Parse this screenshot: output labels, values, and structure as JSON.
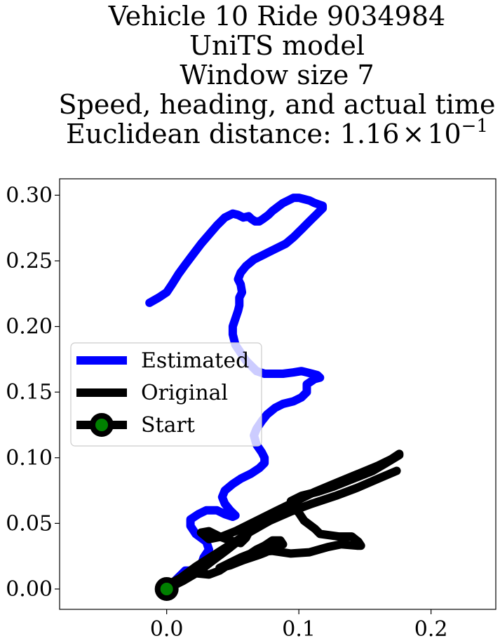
{
  "chart_data": {
    "type": "line",
    "title_lines": [
      "Vehicle 10 Ride 9034984",
      "UniTS model",
      "Window size 7",
      "Speed, heading, and actual time"
    ],
    "title_metric": {
      "prefix": "Euclidean distance: ",
      "mantissa": "1.16",
      "times": "×",
      "base": "10",
      "exponent": "−1"
    },
    "xlabel": "",
    "ylabel": "",
    "xlim": [
      -0.081,
      0.249
    ],
    "ylim": [
      -0.0155,
      0.3125
    ],
    "x_ticks": [
      0.0,
      0.1,
      0.2
    ],
    "x_tick_labels": [
      "0.0",
      "0.1",
      "0.2"
    ],
    "y_ticks": [
      0.0,
      0.05,
      0.1,
      0.15,
      0.2,
      0.25,
      0.3
    ],
    "y_tick_labels": [
      "0.00",
      "0.05",
      "0.10",
      "0.15",
      "0.20",
      "0.25",
      "0.30"
    ],
    "grid": false,
    "legend_position": "center-left",
    "series": [
      {
        "name": "Estimated",
        "color": "#0000ff",
        "x": [
          -0.013,
          -0.006,
          0.0,
          0.004,
          0.009,
          0.014,
          0.02,
          0.026,
          0.032,
          0.038,
          0.044,
          0.05,
          0.054,
          0.058,
          0.062,
          0.064,
          0.067,
          0.07,
          0.073,
          0.077,
          0.08,
          0.084,
          0.088,
          0.092,
          0.096,
          0.1,
          0.104,
          0.108,
          0.112,
          0.115,
          0.118,
          0.118,
          0.114,
          0.108,
          0.102,
          0.096,
          0.09,
          0.082,
          0.074,
          0.066,
          0.06,
          0.056,
          0.054,
          0.056,
          0.057,
          0.055,
          0.055,
          0.054,
          0.052,
          0.05,
          0.05,
          0.052,
          0.056,
          0.06,
          0.064,
          0.068,
          0.074,
          0.08,
          0.088,
          0.096,
          0.102,
          0.106,
          0.11,
          0.114,
          0.116,
          0.112,
          0.106,
          0.106,
          0.102,
          0.096,
          0.088,
          0.082,
          0.076,
          0.072,
          0.068,
          0.066,
          0.068,
          0.072,
          0.074,
          0.074,
          0.07,
          0.064,
          0.056,
          0.05,
          0.044,
          0.042,
          0.044,
          0.048,
          0.052,
          0.05,
          0.044,
          0.038,
          0.03,
          0.024,
          0.018,
          0.018,
          0.022,
          0.03,
          0.032,
          0.028,
          0.026,
          0.02,
          0.014,
          0.01,
          0.006,
          0.003,
          0.0
        ],
        "y": [
          0.218,
          0.222,
          0.226,
          0.232,
          0.24,
          0.247,
          0.255,
          0.263,
          0.27,
          0.277,
          0.283,
          0.286,
          0.285,
          0.283,
          0.284,
          0.282,
          0.28,
          0.28,
          0.282,
          0.285,
          0.288,
          0.291,
          0.294,
          0.296,
          0.298,
          0.298,
          0.297,
          0.296,
          0.294,
          0.293,
          0.292,
          0.29,
          0.286,
          0.28,
          0.274,
          0.268,
          0.263,
          0.259,
          0.255,
          0.251,
          0.246,
          0.241,
          0.236,
          0.232,
          0.226,
          0.222,
          0.216,
          0.212,
          0.206,
          0.2,
          0.194,
          0.186,
          0.18,
          0.174,
          0.17,
          0.166,
          0.164,
          0.164,
          0.164,
          0.165,
          0.166,
          0.165,
          0.164,
          0.163,
          0.161,
          0.16,
          0.156,
          0.15,
          0.146,
          0.143,
          0.141,
          0.138,
          0.133,
          0.128,
          0.122,
          0.117,
          0.11,
          0.104,
          0.1,
          0.096,
          0.092,
          0.088,
          0.084,
          0.08,
          0.075,
          0.07,
          0.065,
          0.06,
          0.056,
          0.055,
          0.057,
          0.06,
          0.06,
          0.057,
          0.053,
          0.048,
          0.042,
          0.036,
          0.03,
          0.024,
          0.018,
          0.014,
          0.014,
          0.01,
          0.006,
          0.003,
          0.0
        ]
      },
      {
        "name": "Original",
        "color": "#000000",
        "x": [
          0.0,
          0.012,
          0.024,
          0.034,
          0.046,
          0.056,
          0.062,
          0.06,
          0.056,
          0.048,
          0.04,
          0.032,
          0.026,
          0.032,
          0.042,
          0.052,
          0.062,
          0.072,
          0.082,
          0.092,
          0.102,
          0.112,
          0.124,
          0.136,
          0.148,
          0.16,
          0.17,
          0.176,
          0.176,
          0.166,
          0.156,
          0.146,
          0.136,
          0.126,
          0.114,
          0.102,
          0.094,
          0.096,
          0.1,
          0.104,
          0.112,
          0.116,
          0.13,
          0.14,
          0.145,
          0.147,
          0.144,
          0.132,
          0.122,
          0.108,
          0.094,
          0.08,
          0.066,
          0.056,
          0.048,
          0.04,
          0.048,
          0.058,
          0.07,
          0.08,
          0.088,
          0.086,
          0.08,
          0.074,
          0.068,
          0.062,
          0.058,
          0.052,
          0.046,
          0.04,
          0.032,
          0.022,
          0.012,
          0.004,
          0.0,
          0.01,
          0.022,
          0.036,
          0.05,
          0.064,
          0.078,
          0.094,
          0.11,
          0.128,
          0.144,
          0.16,
          0.174
        ],
        "y": [
          0.0,
          0.006,
          0.013,
          0.021,
          0.03,
          0.038,
          0.043,
          0.039,
          0.035,
          0.037,
          0.04,
          0.044,
          0.043,
          0.038,
          0.04,
          0.044,
          0.049,
          0.054,
          0.059,
          0.064,
          0.069,
          0.074,
          0.079,
          0.084,
          0.089,
          0.094,
          0.099,
          0.103,
          0.102,
          0.096,
          0.09,
          0.086,
          0.082,
          0.078,
          0.074,
          0.071,
          0.067,
          0.062,
          0.058,
          0.052,
          0.046,
          0.042,
          0.04,
          0.04,
          0.036,
          0.033,
          0.033,
          0.034,
          0.032,
          0.028,
          0.027,
          0.029,
          0.028,
          0.024,
          0.02,
          0.016,
          0.018,
          0.022,
          0.026,
          0.03,
          0.034,
          0.037,
          0.037,
          0.033,
          0.03,
          0.026,
          0.024,
          0.022,
          0.018,
          0.014,
          0.011,
          0.012,
          0.009,
          0.005,
          0.0,
          0.008,
          0.017,
          0.026,
          0.035,
          0.044,
          0.052,
          0.059,
          0.065,
          0.071,
          0.077,
          0.084,
          0.09
        ]
      },
      {
        "name": "Start",
        "color": "#000000",
        "marker_face_color": "#008000",
        "x": [
          0.0
        ],
        "y": [
          0.0
        ]
      }
    ]
  }
}
